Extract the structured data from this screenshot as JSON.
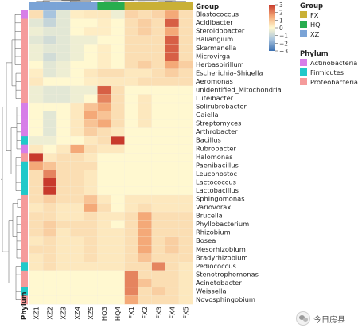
{
  "chart_data": {
    "type": "heatmap",
    "columns": [
      "XZ1",
      "XZ2",
      "XZ3",
      "XZ4",
      "XZ5",
      "HQ3",
      "HQ4",
      "FX1",
      "FX2",
      "FX3",
      "FX4",
      "FX5"
    ],
    "column_group": [
      "XZ",
      "XZ",
      "XZ",
      "XZ",
      "XZ",
      "HQ",
      "HQ",
      "FX",
      "FX",
      "FX",
      "FX",
      "FX"
    ],
    "rows": [
      "Blastococcus",
      "Acidibacter",
      "Steroidobacter",
      "Haliangium",
      "Skermanella",
      "Microvirga",
      "Herbaspirillum",
      "Escherichia–Shigella",
      "Aeromonas",
      "unidentified_Mitochondria",
      "Luteibacter",
      "Solirubrobacter",
      "Gaiella",
      "Streptomyces",
      "Arthrobacter",
      "Bacillus",
      "Rubrobacter",
      "Halomonas",
      "Paenibacillus",
      "Leuconostoc",
      "Lactococcus",
      "Lactobacillus",
      "Sphingomonas",
      "Variovorax",
      "Brucella",
      "Phyllobacterium",
      "Rhizobium",
      "Bosea",
      "Mesorhizobium",
      "Bradyrhizobium",
      "Pediococcus",
      "Stenotrophomonas",
      "Acinetobacter",
      "Weissella",
      "Novosphingobium"
    ],
    "row_phylum": [
      "Actinobacteria",
      "Proteobacteria",
      "Proteobacteria",
      "Proteobacteria",
      "Proteobacteria",
      "Proteobacteria",
      "Proteobacteria",
      "Proteobacteria",
      "Proteobacteria",
      "Proteobacteria",
      "Proteobacteria",
      "Actinobacteria",
      "Actinobacteria",
      "Actinobacteria",
      "Actinobacteria",
      "Firmicutes",
      "Actinobacteria",
      "Proteobacteria",
      "Firmicutes",
      "Firmicutes",
      "Firmicutes",
      "Firmicutes",
      "Proteobacteria",
      "Proteobacteria",
      "Proteobacteria",
      "Proteobacteria",
      "Proteobacteria",
      "Proteobacteria",
      "Proteobacteria",
      "Proteobacteria",
      "Firmicutes",
      "Proteobacteria",
      "Proteobacteria",
      "Firmicutes",
      "Proteobacteria"
    ],
    "values": [
      [
        0.5,
        -1.5,
        -0.5,
        0.2,
        0.3,
        0.3,
        -0.3,
        0.7,
        0.5,
        0.7,
        1.5,
        0.5
      ],
      [
        -0.5,
        -1.0,
        -0.5,
        0.0,
        0.0,
        0.2,
        0.0,
        0.5,
        0.8,
        0.5,
        2.5,
        0.5
      ],
      [
        -0.3,
        -0.5,
        -0.5,
        0.0,
        0.2,
        0.2,
        0.0,
        0.5,
        0.8,
        0.5,
        1.5,
        0.5
      ],
      [
        -0.5,
        -0.8,
        -0.5,
        -0.3,
        -0.3,
        0.0,
        0.0,
        0.5,
        0.5,
        0.5,
        2.5,
        0.5
      ],
      [
        -0.3,
        -0.5,
        -0.5,
        -0.3,
        0.0,
        0.2,
        0.0,
        0.5,
        0.5,
        0.5,
        2.5,
        0.5
      ],
      [
        -0.3,
        -0.8,
        -0.5,
        -0.3,
        0.0,
        0.2,
        0.0,
        0.5,
        0.5,
        0.5,
        2.5,
        0.5
      ],
      [
        0.0,
        -0.5,
        -0.3,
        0.0,
        0.0,
        0.2,
        0.0,
        0.5,
        0.8,
        0.5,
        1.5,
        0.8
      ],
      [
        0.2,
        -0.5,
        -0.3,
        0.0,
        0.3,
        0.5,
        0.5,
        0.3,
        0.3,
        0.5,
        0.8,
        0.5
      ],
      [
        0.3,
        0.0,
        0.0,
        0.0,
        0.2,
        0.3,
        0.3,
        0.3,
        0.5,
        0.5,
        0.5,
        0.5
      ],
      [
        -0.3,
        -0.5,
        -0.5,
        -0.3,
        -0.3,
        2.5,
        0.5,
        0.0,
        0.0,
        0.0,
        0.0,
        0.0
      ],
      [
        -0.3,
        -0.5,
        -0.5,
        -0.3,
        0.0,
        2.0,
        0.5,
        0.0,
        0.3,
        0.0,
        0.0,
        0.0
      ],
      [
        0.0,
        0.0,
        0.0,
        0.3,
        1.0,
        1.5,
        0.5,
        0.0,
        0.3,
        0.0,
        0.0,
        0.0
      ],
      [
        0.0,
        -0.5,
        0.0,
        0.3,
        1.5,
        1.0,
        0.5,
        0.0,
        0.3,
        0.0,
        0.0,
        0.0
      ],
      [
        0.0,
        -0.5,
        0.0,
        0.3,
        1.0,
        1.5,
        0.5,
        0.0,
        0.3,
        0.0,
        0.0,
        0.0
      ],
      [
        0.0,
        -0.5,
        0.0,
        0.3,
        0.8,
        0.5,
        0.3,
        0.0,
        0.0,
        0.0,
        0.0,
        0.0
      ],
      [
        -0.3,
        -0.3,
        0.0,
        0.0,
        0.3,
        0.5,
        3.0,
        0.0,
        0.0,
        0.0,
        0.0,
        0.0
      ],
      [
        0.3,
        0.0,
        0.3,
        1.5,
        0.5,
        0.3,
        0.3,
        0.0,
        0.0,
        0.0,
        0.0,
        0.0
      ],
      [
        3.0,
        0.3,
        0.5,
        0.5,
        0.3,
        0.0,
        0.0,
        0.0,
        0.0,
        0.0,
        0.0,
        0.0
      ],
      [
        1.5,
        1.0,
        0.5,
        0.5,
        0.5,
        0.0,
        0.0,
        0.0,
        0.0,
        0.0,
        0.0,
        0.0
      ],
      [
        0.5,
        2.0,
        0.5,
        0.5,
        0.3,
        0.0,
        0.0,
        0.0,
        0.0,
        0.0,
        0.0,
        0.0
      ],
      [
        0.5,
        3.0,
        0.5,
        0.5,
        0.3,
        0.0,
        0.0,
        0.0,
        0.0,
        0.0,
        0.0,
        0.0
      ],
      [
        0.5,
        3.0,
        0.5,
        0.5,
        0.3,
        0.0,
        0.0,
        0.0,
        0.0,
        0.0,
        0.0,
        0.0
      ],
      [
        0.5,
        0.8,
        0.5,
        0.5,
        1.0,
        0.3,
        0.0,
        0.3,
        0.3,
        0.3,
        0.3,
        0.3
      ],
      [
        0.3,
        0.5,
        0.3,
        0.3,
        1.5,
        0.5,
        0.0,
        0.3,
        0.5,
        0.3,
        0.3,
        0.3
      ],
      [
        0.5,
        0.5,
        0.3,
        0.3,
        0.5,
        0.3,
        0.3,
        0.5,
        1.5,
        0.5,
        0.5,
        0.5
      ],
      [
        0.5,
        0.8,
        0.5,
        0.5,
        0.5,
        0.3,
        0.0,
        0.5,
        1.5,
        0.5,
        0.5,
        0.5
      ],
      [
        0.5,
        0.8,
        0.3,
        0.5,
        0.5,
        0.3,
        0.3,
        0.5,
        1.5,
        0.5,
        0.5,
        0.5
      ],
      [
        0.3,
        0.5,
        0.3,
        0.3,
        0.5,
        0.3,
        0.3,
        0.5,
        1.5,
        0.5,
        0.8,
        0.5
      ],
      [
        0.5,
        0.5,
        0.3,
        0.3,
        0.5,
        0.3,
        0.3,
        0.5,
        1.5,
        0.5,
        0.8,
        0.5
      ],
      [
        0.3,
        0.5,
        0.3,
        0.3,
        0.5,
        0.3,
        0.3,
        0.5,
        1.0,
        0.5,
        0.5,
        0.5
      ],
      [
        0.3,
        0.5,
        0.3,
        0.3,
        0.3,
        0.3,
        0.3,
        0.5,
        0.5,
        2.0,
        0.5,
        0.3
      ],
      [
        0.0,
        0.0,
        0.0,
        0.0,
        0.0,
        0.0,
        0.0,
        2.0,
        0.5,
        0.5,
        0.5,
        0.3
      ],
      [
        0.0,
        0.0,
        0.0,
        0.0,
        0.0,
        0.0,
        0.0,
        2.0,
        1.0,
        0.5,
        0.5,
        0.3
      ],
      [
        0.0,
        0.0,
        0.0,
        0.0,
        0.0,
        0.0,
        0.0,
        2.0,
        0.5,
        0.8,
        0.5,
        0.3
      ],
      [
        0.0,
        0.0,
        0.0,
        0.0,
        0.0,
        0.0,
        0.0,
        1.5,
        0.5,
        0.5,
        0.5,
        0.3
      ]
    ],
    "color_scale": {
      "ticks": [
        3,
        2,
        1,
        0,
        -1,
        -2,
        -3
      ],
      "low_color": "#3b6fb0",
      "mid_color": "#fff8d0",
      "high_color": "#c83a2c",
      "range": [
        -3,
        3
      ]
    },
    "group_legend": {
      "title": "Group",
      "entries": [
        {
          "name": "FX",
          "color": "#c9b036"
        },
        {
          "name": "HQ",
          "color": "#27ad4e"
        },
        {
          "name": "XZ",
          "color": "#7aa3d6"
        }
      ]
    },
    "phylum_legend": {
      "title": "Phylum",
      "entries": [
        {
          "name": "Actinobacteria",
          "color": "#d77ee8"
        },
        {
          "name": "Firmicutes",
          "color": "#21c9c9"
        },
        {
          "name": "Proteobacteria",
          "color": "#f59b9b"
        }
      ]
    },
    "column_annotation_label": "Group",
    "row_annotation_label": "Phylum"
  },
  "watermark": {
    "text": "今日房县",
    "icon": "wechat-account-icon"
  }
}
